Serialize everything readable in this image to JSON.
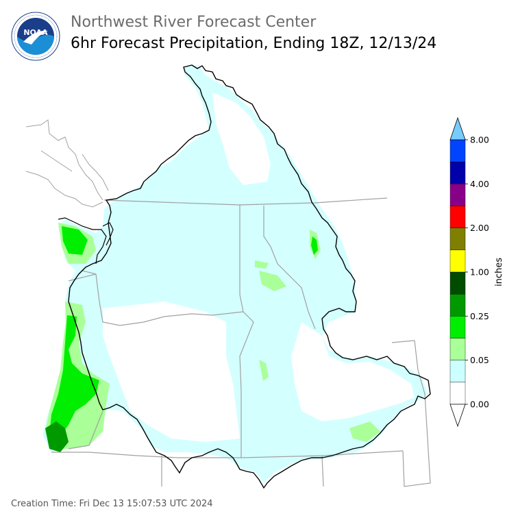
{
  "header": {
    "org": "Northwest River Forecast Center",
    "product": "6hr Forecast Precipitation, Ending 18Z, 12/13/24"
  },
  "logo": {
    "text": "NOAA",
    "ring_text": "NATIONAL OCEANIC AND ATMOSPHERIC ADMINISTRATION · U.S. DEPARTMENT OF COMMERCE",
    "icon": "noaa-logo"
  },
  "legend": {
    "unit": "inches",
    "ticks": [
      "0.00",
      "0.05",
      "0.25",
      "1.00",
      "2.00",
      "4.00",
      "8.00"
    ],
    "colors": [
      "#ffffff",
      "#ccffff",
      "#aaff99",
      "#00ee00",
      "#009900",
      "#004d00",
      "#ffff00",
      "#808000",
      "#ff0000",
      "#880088",
      "#0000aa",
      "#0044ff",
      "#77ccff"
    ]
  },
  "footer": {
    "creation": "Creation Time: Fri Dec 13 15:07:53 UTC 2024"
  }
}
